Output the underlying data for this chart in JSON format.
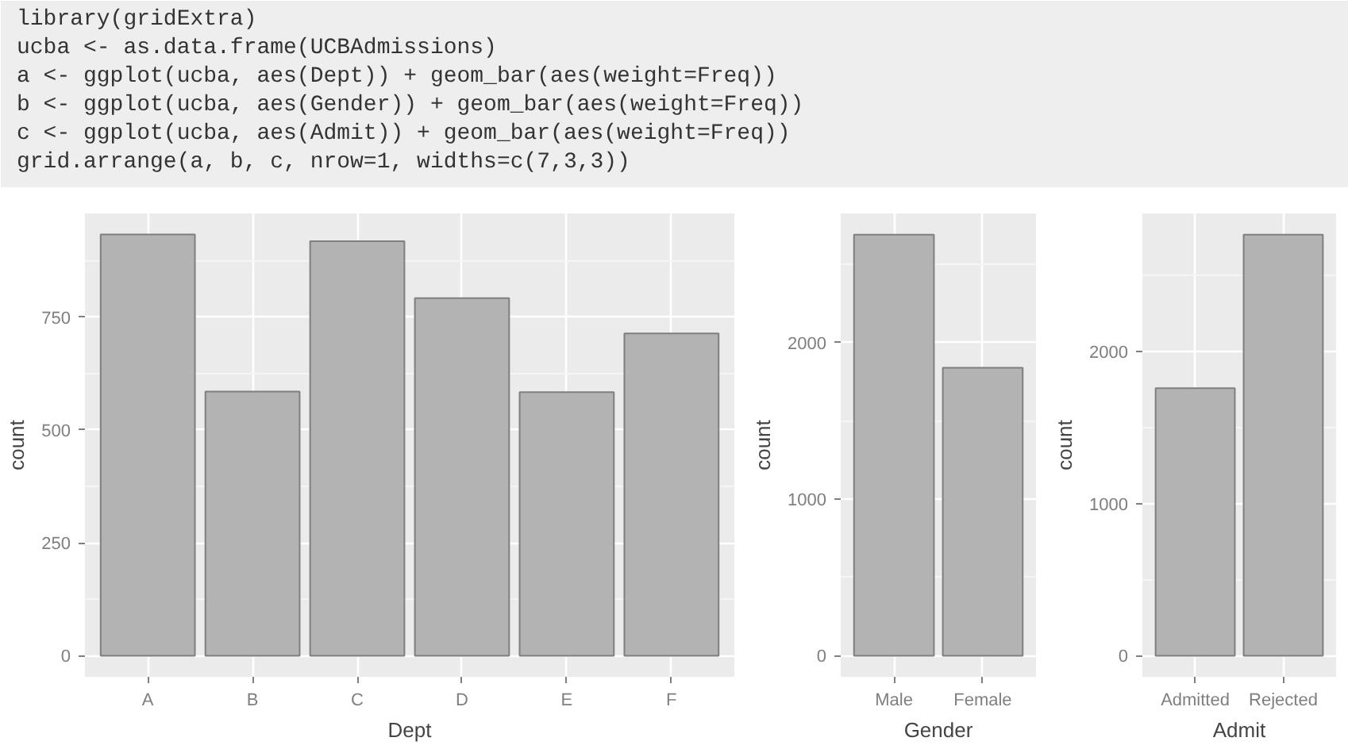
{
  "chart_data": [
    {
      "type": "other",
      "annotations": [
        "library(gridExtra)",
        "ucba <- as.data.frame(UCBAdmissions)",
        "a <- ggplot(ucba, aes(Dept)) + geom_bar(aes(weight=Freq))",
        "b <- ggplot(ucba, aes(Gender)) + geom_bar(aes(weight=Freq))",
        "c <- ggplot(ucba, aes(Admit)) + geom_bar(aes(weight=Freq))",
        "grid.arrange(a, b, c, nrow=1, widths=c(7,3,3))"
      ]
    },
    {
      "type": "bar",
      "categories": [
        "A",
        "B",
        "C",
        "D",
        "E",
        "F"
      ],
      "values": [
        933,
        585,
        918,
        792,
        584,
        714
      ],
      "color": "#b3b3b3",
      "xlabel": "Dept",
      "ylabel": "count",
      "ylim": [
        -46.65,
        979.65
      ],
      "yticks": [
        0,
        250,
        500,
        750
      ],
      "grid": true
    },
    {
      "type": "bar",
      "categories": [
        "Male",
        "Female"
      ],
      "values": [
        2690,
        1840
      ],
      "color": "#b3b3b3",
      "xlabel": "Gender",
      "ylabel": "count",
      "ylim": [
        -134.55,
        2825.55
      ],
      "yticks": [
        0,
        1000,
        2000
      ],
      "grid": true
    },
    {
      "type": "bar",
      "categories": [
        "Admitted",
        "Rejected"
      ],
      "values": [
        1760,
        2770
      ],
      "color": "#b3b3b3",
      "xlabel": "Admit",
      "ylabel": "count",
      "ylim": [
        -138.55,
        2909.55
      ],
      "yticks": [
        0,
        1000,
        2000
      ],
      "grid": true
    }
  ]
}
